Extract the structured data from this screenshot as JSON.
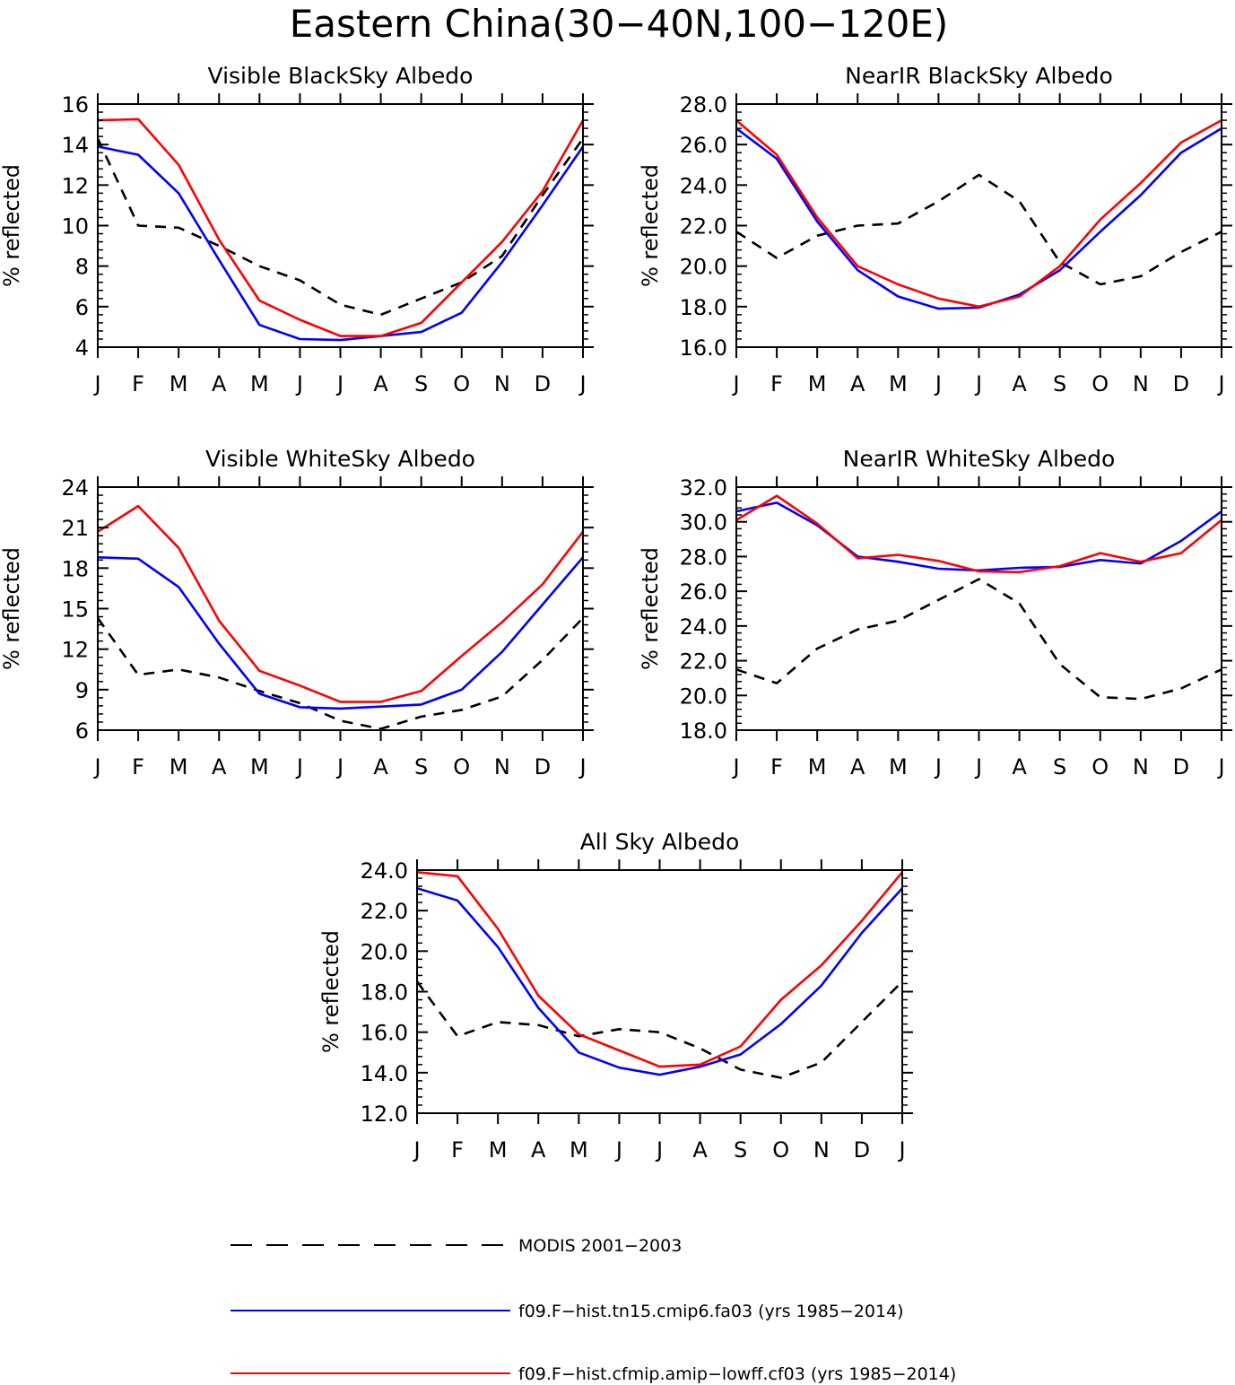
{
  "figure_title": "Eastern China(30−40N,100−120E)",
  "colors": {
    "modis": "#000000",
    "cmip6": "#0000ff",
    "lowff": "#ff0000",
    "axes": "#000000"
  },
  "legend": {
    "items": [
      {
        "key": "modis",
        "label": "MODIS 2001−2003",
        "style": "dashed"
      },
      {
        "key": "cmip6",
        "label": "f09.F−hist.tn15.cmip6.fa03 (yrs 1985−2014)",
        "style": "solid"
      },
      {
        "key": "lowff",
        "label": "f09.F−hist.cfmip.amip−lowff.cf03 (yrs 1985−2014)",
        "style": "solid"
      }
    ]
  },
  "chart_data": [
    {
      "type": "line",
      "title": "Visible BlackSky Albedo",
      "ylabel": "% reflected",
      "xlabel": "",
      "categories": [
        "J",
        "F",
        "M",
        "A",
        "M",
        "J",
        "J",
        "A",
        "S",
        "O",
        "N",
        "D",
        "J"
      ],
      "ylim": [
        4,
        16
      ],
      "yticks": [
        4,
        6,
        8,
        10,
        12,
        14,
        16
      ],
      "ytick_labels": [
        "4",
        "6",
        "8",
        "10",
        "12",
        "14",
        "16"
      ],
      "grid": false,
      "series": [
        {
          "key": "modis",
          "values": [
            14.3,
            10.0,
            9.9,
            9.0,
            8.0,
            7.3,
            6.1,
            5.6,
            6.4,
            7.2,
            8.5,
            11.5,
            14.3
          ]
        },
        {
          "key": "cmip6",
          "values": [
            13.9,
            13.5,
            11.6,
            8.3,
            5.1,
            4.4,
            4.35,
            4.55,
            4.75,
            5.7,
            8.2,
            11.0,
            13.9
          ]
        },
        {
          "key": "lowff",
          "values": [
            15.2,
            15.25,
            13.0,
            9.3,
            6.3,
            5.35,
            4.55,
            4.55,
            5.2,
            7.2,
            9.2,
            11.7,
            15.2
          ]
        }
      ]
    },
    {
      "type": "line",
      "title": "NearIR BlackSky Albedo",
      "ylabel": "% reflected",
      "xlabel": "",
      "categories": [
        "J",
        "F",
        "M",
        "A",
        "M",
        "J",
        "J",
        "A",
        "S",
        "O",
        "N",
        "D",
        "J"
      ],
      "ylim": [
        16,
        28
      ],
      "yticks": [
        16,
        18,
        20,
        22,
        24,
        26,
        28
      ],
      "ytick_labels": [
        "16.0",
        "18.0",
        "20.0",
        "22.0",
        "24.0",
        "26.0",
        "28.0"
      ],
      "grid": false,
      "series": [
        {
          "key": "modis",
          "values": [
            21.7,
            20.4,
            21.5,
            22.0,
            22.1,
            23.2,
            24.5,
            23.2,
            20.2,
            19.1,
            19.5,
            20.7,
            21.7
          ]
        },
        {
          "key": "cmip6",
          "values": [
            26.8,
            25.3,
            22.2,
            19.8,
            18.5,
            17.9,
            17.95,
            18.6,
            19.8,
            21.7,
            23.5,
            25.6,
            26.8
          ]
        },
        {
          "key": "lowff",
          "values": [
            27.2,
            25.5,
            22.4,
            20.0,
            19.1,
            18.4,
            18.0,
            18.5,
            20.0,
            22.3,
            24.1,
            26.1,
            27.2
          ]
        }
      ]
    },
    {
      "type": "line",
      "title": "Visible WhiteSky Albedo",
      "ylabel": "% reflected",
      "xlabel": "",
      "categories": [
        "J",
        "F",
        "M",
        "A",
        "M",
        "J",
        "J",
        "A",
        "S",
        "O",
        "N",
        "D",
        "J"
      ],
      "ylim": [
        6,
        24
      ],
      "yticks": [
        6,
        9,
        12,
        15,
        18,
        21,
        24
      ],
      "ytick_labels": [
        "6",
        "9",
        "12",
        "15",
        "18",
        "21",
        "24"
      ],
      "grid": false,
      "series": [
        {
          "key": "modis",
          "values": [
            14.3,
            10.1,
            10.5,
            9.9,
            8.9,
            8.0,
            6.7,
            6.1,
            7.0,
            7.5,
            8.5,
            11.2,
            14.3
          ]
        },
        {
          "key": "cmip6",
          "values": [
            18.8,
            18.7,
            16.6,
            12.4,
            8.7,
            7.7,
            7.6,
            7.75,
            7.9,
            9.0,
            11.8,
            15.3,
            18.8
          ]
        },
        {
          "key": "lowff",
          "values": [
            20.7,
            22.6,
            19.5,
            14.1,
            10.4,
            9.3,
            8.1,
            8.1,
            8.9,
            11.5,
            14.0,
            16.8,
            20.7
          ]
        }
      ]
    },
    {
      "type": "line",
      "title": "NearIR WhiteSky Albedo",
      "ylabel": "% reflected",
      "xlabel": "",
      "categories": [
        "J",
        "F",
        "M",
        "A",
        "M",
        "J",
        "J",
        "A",
        "S",
        "O",
        "N",
        "D",
        "J"
      ],
      "ylim": [
        18,
        32
      ],
      "yticks": [
        18,
        20,
        22,
        24,
        26,
        28,
        30,
        32
      ],
      "ytick_labels": [
        "18.0",
        "20.0",
        "22.0",
        "24.0",
        "26.0",
        "28.0",
        "30.0",
        "32.0"
      ],
      "grid": false,
      "series": [
        {
          "key": "modis",
          "values": [
            21.5,
            20.7,
            22.7,
            23.8,
            24.3,
            25.5,
            26.7,
            25.3,
            21.8,
            19.9,
            19.8,
            20.4,
            21.5
          ]
        },
        {
          "key": "cmip6",
          "values": [
            30.6,
            31.1,
            29.8,
            28.0,
            27.7,
            27.3,
            27.2,
            27.35,
            27.4,
            27.8,
            27.6,
            28.9,
            30.6
          ]
        },
        {
          "key": "lowff",
          "values": [
            30.1,
            31.5,
            29.9,
            27.9,
            28.1,
            27.75,
            27.15,
            27.1,
            27.45,
            28.2,
            27.7,
            28.2,
            30.1
          ]
        }
      ]
    },
    {
      "type": "line",
      "title": "All Sky Albedo",
      "ylabel": "% reflected",
      "xlabel": "",
      "categories": [
        "J",
        "F",
        "M",
        "A",
        "M",
        "J",
        "J",
        "A",
        "S",
        "O",
        "N",
        "D",
        "J"
      ],
      "ylim": [
        12,
        24
      ],
      "yticks": [
        12,
        14,
        16,
        18,
        20,
        22,
        24
      ],
      "ytick_labels": [
        "12.0",
        "14.0",
        "16.0",
        "18.0",
        "20.0",
        "22.0",
        "24.0"
      ],
      "grid": false,
      "series": [
        {
          "key": "modis",
          "values": [
            18.5,
            15.8,
            16.5,
            16.35,
            15.8,
            16.15,
            16.0,
            15.2,
            14.15,
            13.75,
            14.5,
            16.5,
            18.5
          ]
        },
        {
          "key": "cmip6",
          "values": [
            23.1,
            22.5,
            20.2,
            17.2,
            15.0,
            14.25,
            13.9,
            14.3,
            14.9,
            16.4,
            18.3,
            20.9,
            23.1
          ]
        },
        {
          "key": "lowff",
          "values": [
            23.9,
            23.7,
            21.1,
            17.8,
            15.9,
            15.1,
            14.3,
            14.4,
            15.3,
            17.6,
            19.3,
            21.5,
            23.9
          ]
        }
      ]
    }
  ]
}
